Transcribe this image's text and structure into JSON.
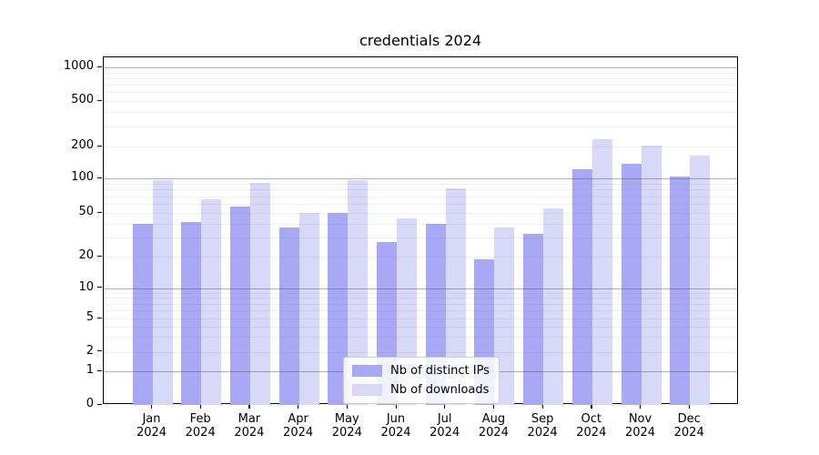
{
  "title": "credentials 2024",
  "chart_data": {
    "type": "bar",
    "title": "credentials 2024",
    "yscale": "symlog",
    "grid": true,
    "legend_position": "lower center",
    "xlabel": "",
    "ylabel": "",
    "ylim": [
      0,
      1100
    ],
    "categories": [
      "Jan 2024",
      "Feb 2024",
      "Mar 2024",
      "Apr 2024",
      "May 2024",
      "Jun 2024",
      "Jul 2024",
      "Aug 2024",
      "Sep 2024",
      "Oct 2024",
      "Nov 2024",
      "Dec 2024"
    ],
    "y_ticks": [
      0,
      1,
      2,
      5,
      10,
      20,
      50,
      100,
      200,
      500,
      1000
    ],
    "series": [
      {
        "name": "Nb of distinct IPs",
        "color": "#a8a8f5",
        "values": [
          40,
          41,
          57,
          37,
          50,
          27,
          40,
          19,
          32,
          122,
          137,
          104
        ]
      },
      {
        "name": "Nb of downloads",
        "color": "#d8d8f8",
        "values": [
          96,
          66,
          92,
          50,
          96,
          45,
          82,
          37,
          55,
          233,
          202,
          164
        ]
      }
    ]
  }
}
